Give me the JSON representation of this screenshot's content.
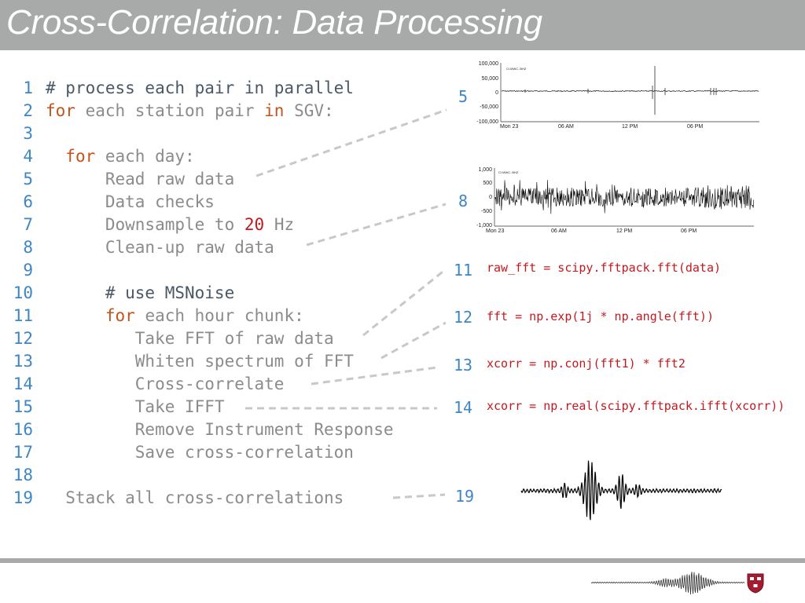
{
  "slide": {
    "title": "Cross-Correlation: Data Processing"
  },
  "code_lines": [
    {
      "n": "1",
      "parts": [
        [
          "cmt",
          "# process each pair in parallel"
        ]
      ]
    },
    {
      "n": "2",
      "parts": [
        [
          "kw",
          "for"
        ],
        [
          "txt",
          " each station pair "
        ],
        [
          "kw",
          "in"
        ],
        [
          "txt",
          " SGV:"
        ]
      ]
    },
    {
      "n": "3",
      "parts": []
    },
    {
      "n": "4",
      "parts": [
        [
          "txt",
          "  "
        ],
        [
          "kw",
          "for"
        ],
        [
          "txt",
          " each day:"
        ]
      ]
    },
    {
      "n": "5",
      "parts": [
        [
          "txt",
          "      Read raw data"
        ]
      ]
    },
    {
      "n": "6",
      "parts": [
        [
          "txt",
          "      Data checks"
        ]
      ]
    },
    {
      "n": "7",
      "parts": [
        [
          "txt",
          "      Downsample to "
        ],
        [
          "num",
          "20"
        ],
        [
          "txt",
          " Hz"
        ]
      ]
    },
    {
      "n": "8",
      "parts": [
        [
          "txt",
          "      Clean-up raw data"
        ]
      ]
    },
    {
      "n": "9",
      "parts": []
    },
    {
      "n": "10",
      "parts": [
        [
          "txt",
          "      "
        ],
        [
          "cmt",
          "# use MSNoise"
        ]
      ]
    },
    {
      "n": "11",
      "parts": [
        [
          "txt",
          "      "
        ],
        [
          "kw",
          "for"
        ],
        [
          "txt",
          " each hour chunk:"
        ]
      ]
    },
    {
      "n": "12",
      "parts": [
        [
          "txt",
          "         Take FFT of raw data"
        ]
      ]
    },
    {
      "n": "13",
      "parts": [
        [
          "txt",
          "         Whiten spectrum of FFT"
        ]
      ]
    },
    {
      "n": "14",
      "parts": [
        [
          "txt",
          "         Cross-correlate"
        ]
      ]
    },
    {
      "n": "15",
      "parts": [
        [
          "txt",
          "         Take IFFT"
        ]
      ]
    },
    {
      "n": "16",
      "parts": [
        [
          "txt",
          "         Remove Instrument Response"
        ]
      ]
    },
    {
      "n": "17",
      "parts": [
        [
          "txt",
          "         Save cross-correlation"
        ]
      ]
    },
    {
      "n": "18",
      "parts": []
    },
    {
      "n": "19",
      "parts": [
        [
          "txt",
          "  Stack all cross-correlations"
        ]
      ]
    }
  ],
  "callouts": {
    "c5": "5",
    "c8": "8",
    "c11": "11",
    "c12": "12",
    "c13": "13",
    "c14": "14",
    "c19": "19"
  },
  "python": {
    "l11": "raw_fft = scipy.fftpack.fft(data)",
    "l12": "fft = np.exp(1j * np.angle(fft))",
    "l13": "xcorr = np.conj(fft1) * fft2",
    "l14": "xcorr = np.real(scipy.fftpack.ifft(xcorr))"
  },
  "plot_raw": {
    "channel": "CI.MWC..BHZ",
    "y_ticks": [
      "100,000",
      "50,000",
      "0",
      "-50,000",
      "-100,000"
    ],
    "x_ticks": [
      "Mon 23",
      "06 AM",
      "12 PM",
      "06 PM"
    ]
  },
  "plot_clean": {
    "channel": "CI.MWC..BHZ",
    "y_ticks": [
      "1,000",
      "500",
      "0",
      "-500",
      "-1,000"
    ],
    "x_ticks": [
      "Mon 23",
      "06 AM",
      "12 PM",
      "06 PM"
    ]
  },
  "colors": {
    "accent_blue": "#3e86c4",
    "keyword": "#c4531d",
    "number": "#c4191e",
    "code_gray": "#8b8b8b",
    "title_bar": "#a8aaa9",
    "harvard_crimson": "#a51c30"
  }
}
